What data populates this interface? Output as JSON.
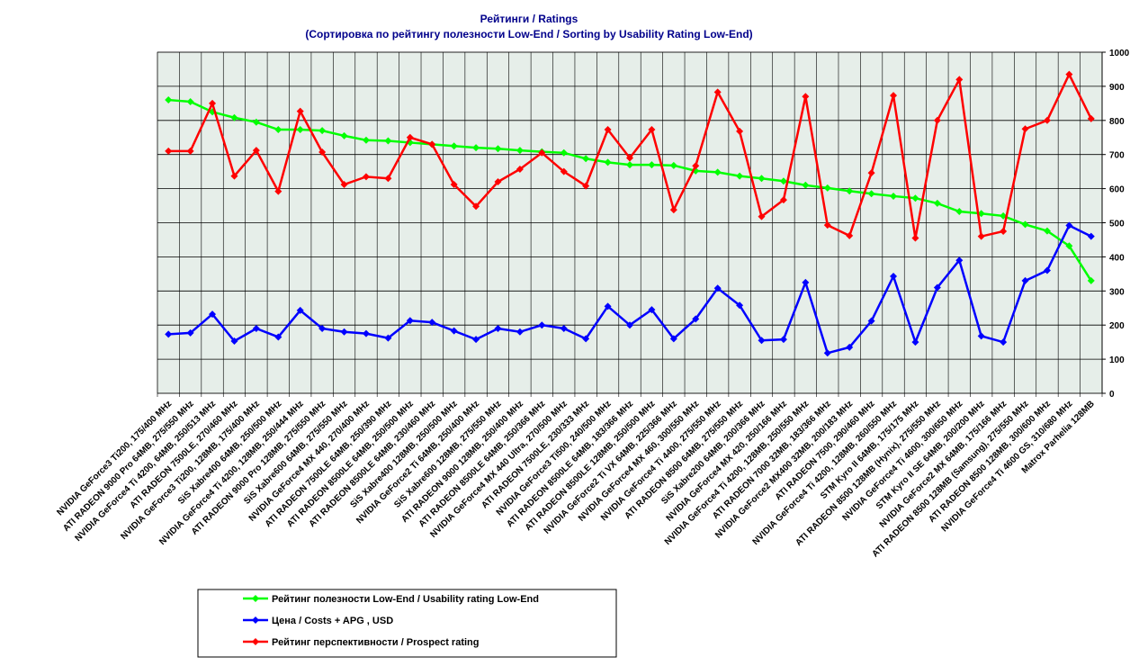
{
  "chart_data": {
    "type": "line",
    "title": "Рейтинги / Ratings",
    "subtitle": "(Сортировка по рейтингу полезности Low-End / Sorting by Usability Rating Low-End)",
    "categories": [
      "NVIDIA GeForce3 Ti200, 175/400 MHz",
      "ATI RADEON 9000 Pro 64MB, 275/550 MHz",
      "NVIDIA GeForce4 Ti 4200, 64MB, 250/513 MHz",
      "ATI RADEON 7500LE, 270/460 MHz",
      "NVIDIA GeForce3 Ti200, 128MB, 175/400 MHz",
      "SiS Xabre400 64MB, 250/500 MHz",
      "NVIDIA GeForce4 Ti 4200, 128MB, 250/444 MHz",
      "ATI RADEON 9000 Pro 128MB, 275/550 MHz",
      "SiS Xabre600 64MB, 275/550 MHz",
      "NVIDIA GeForce4 MX 440, 270/400 MHz",
      "ATI RADEON 7500LE 64MB, 250/390 MHz",
      "ATI RADEON 8500LE 64MB, 250/500 MHz",
      "ATI RADEON 8500LE 64MB, 230/460 MHz",
      "SiS Xabre400 128MB, 250/500 MHz",
      "NVIDIA GeForce2 Ti 64MB, 250/400 MHz",
      "SiS Xabre600 128MB, 275/550 MHz",
      "ATI RADEON 9000 128MB, 250/400 MHz",
      "ATI RADEON 8500LE 64MB, 250/366 MHz",
      "NVIDIA GeForce4 MX 440 Ultra, 270/500 MHz",
      "ATI RADEON 7500LE, 230/333 MHz",
      "NVIDIA GeForce3 Ti500, 240/500 MHz",
      "ATI RADEON 8500LE 64MB, 183/366 MHz",
      "ATI RADEON 8500LE 128MB, 250/500 MHz",
      "NVIDIA GeForce2 Ti VX 64MB, 225/366 MHz",
      "NVIDIA GeForce4 MX 460, 300/550 MHz",
      "NVIDIA GeForce4 Ti 4400, 275/550 MHz",
      "ATI RADEON 8500 64MB, 275/550 MHz",
      "SiS Xabre200 64MB, 200/366 MHz",
      "NVIDIA GeForce4 MX 420, 250/166 MHz",
      "NVIDIA GeForce4 Ti 4200, 128MB, 250/550 MHz",
      "ATI RADEON 7000 32MB, 183/366 MHz",
      "NVIDIA GeForce2 MX400 32MB, 200/183 MHz",
      "ATI RADEON 7500, 290/460 MHz",
      "NVIDIA GeForce4 Ti 4200, 128MB, 260/550 MHz",
      "STM Kyro II 64MB, 175/175 MHz",
      "ATI RADEON 8500 128MB (Hynix), 275/550 MHz",
      "NVIDIA GeForce4 Ti 4600, 300/650 MHz",
      "STM Kyro II SE 64MB, 200/200 MHz",
      "NVIDIA GeForce2 MX 64MB, 175/166 MHz",
      "ATI RADEON 8500 128MB (Samsung), 275/550 MHz",
      "ATI RADEON 8500 128MB, 300/600 MHz",
      "NVIDIA GeForce4 Ti 4600 GS, 310/680 MHz",
      "Matrox Parhelia 128MB"
    ],
    "series": [
      {
        "name": "Рейтинг полезности Low-End / Usability rating Low-End",
        "color": "#00ff00",
        "values": [
          860,
          855,
          825,
          808,
          795,
          773,
          773,
          770,
          755,
          742,
          740,
          735,
          730,
          725,
          720,
          717,
          712,
          708,
          705,
          688,
          677,
          670,
          670,
          668,
          652,
          648,
          637,
          630,
          622,
          610,
          602,
          593,
          585,
          578,
          572,
          557,
          533,
          527,
          520,
          495,
          476,
          432,
          330
        ]
      },
      {
        "name": "Цена / Costs + APG , USD",
        "color": "#0000ff",
        "values": [
          173,
          177,
          232,
          153,
          190,
          165,
          243,
          190,
          180,
          175,
          162,
          213,
          208,
          183,
          158,
          190,
          180,
          200,
          190,
          160,
          255,
          200,
          245,
          160,
          218,
          308,
          258,
          155,
          158,
          325,
          118,
          135,
          212,
          343,
          150,
          310,
          390,
          168,
          150,
          330,
          360,
          492,
          460
        ]
      },
      {
        "name": "Рейтинг перспективности / Prospect rating",
        "color": "#ff0000",
        "values": [
          710,
          710,
          850,
          637,
          712,
          592,
          827,
          707,
          612,
          635,
          630,
          750,
          730,
          612,
          548,
          620,
          657,
          705,
          650,
          608,
          773,
          690,
          773,
          538,
          667,
          883,
          768,
          518,
          567,
          870,
          493,
          462,
          646,
          873,
          455,
          800,
          920,
          460,
          475,
          775,
          800,
          935,
          805
        ]
      }
    ],
    "ylim": [
      0,
      1000
    ],
    "yticks": [
      0,
      100,
      200,
      300,
      400,
      500,
      600,
      700,
      800,
      900,
      1000
    ],
    "y_axis_side": "right",
    "grid": true
  }
}
